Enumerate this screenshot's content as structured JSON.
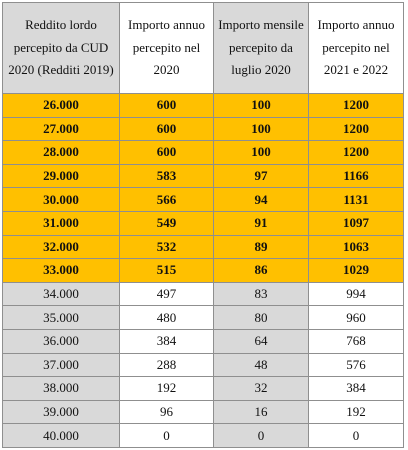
{
  "table": {
    "headers": [
      "Reddito lordo percepito da CUD 2020 (Redditi 2019)",
      "Importo annuo percepito nel 2020",
      "Importo mensile percepito da luglio 2020",
      "Importo annuo percepito nel 2021 e 2022"
    ],
    "highlight_color": "#ffc000",
    "rows": [
      {
        "highlight": true,
        "cells": [
          "26.000",
          "600",
          "100",
          "1200"
        ]
      },
      {
        "highlight": true,
        "cells": [
          "27.000",
          "600",
          "100",
          "1200"
        ]
      },
      {
        "highlight": true,
        "cells": [
          "28.000",
          "600",
          "100",
          "1200"
        ]
      },
      {
        "highlight": true,
        "cells": [
          "29.000",
          "583",
          "97",
          "1166"
        ]
      },
      {
        "highlight": true,
        "cells": [
          "30.000",
          "566",
          "94",
          "1131"
        ]
      },
      {
        "highlight": true,
        "cells": [
          "31.000",
          "549",
          "91",
          "1097"
        ]
      },
      {
        "highlight": true,
        "cells": [
          "32.000",
          "532",
          "89",
          "1063"
        ]
      },
      {
        "highlight": true,
        "cells": [
          "33.000",
          "515",
          "86",
          "1029"
        ]
      },
      {
        "highlight": false,
        "cells": [
          "34.000",
          "497",
          "83",
          "994"
        ]
      },
      {
        "highlight": false,
        "cells": [
          "35.000",
          "480",
          "80",
          "960"
        ]
      },
      {
        "highlight": false,
        "cells": [
          "36.000",
          "384",
          "64",
          "768"
        ]
      },
      {
        "highlight": false,
        "cells": [
          "37.000",
          "288",
          "48",
          "576"
        ]
      },
      {
        "highlight": false,
        "cells": [
          "38.000",
          "192",
          "32",
          "384"
        ]
      },
      {
        "highlight": false,
        "cells": [
          "39.000",
          "96",
          "16",
          "192"
        ]
      },
      {
        "highlight": false,
        "cells": [
          "40.000",
          "0",
          "0",
          "0"
        ]
      }
    ]
  }
}
